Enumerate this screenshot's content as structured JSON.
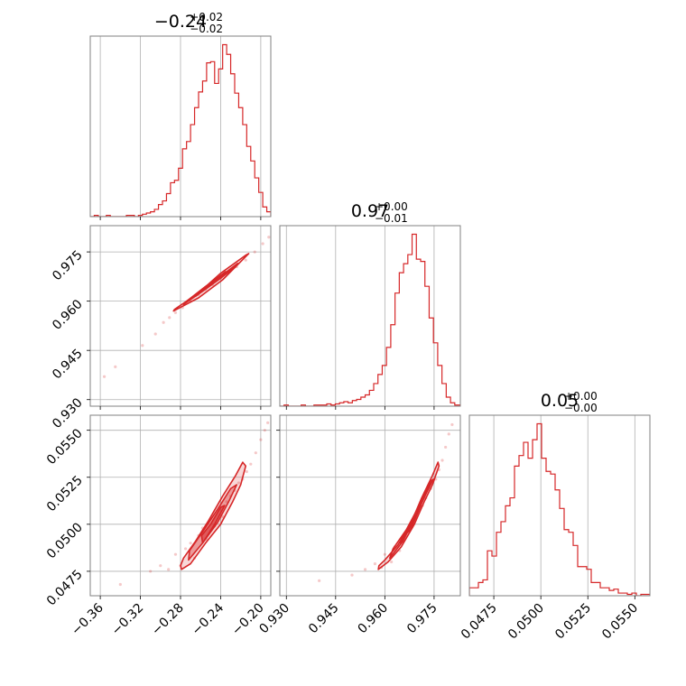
{
  "chart_data": {
    "type": "corner",
    "color": "#d62728",
    "grid": true,
    "parameters": [
      {
        "title": {
          "value": "−0.24",
          "plus": "+0.02",
          "minus": "−0.02"
        },
        "range": [
          -0.37,
          -0.19
        ],
        "ticks": [
          -0.36,
          -0.32,
          -0.28,
          -0.24,
          -0.2
        ],
        "tick_labels": [
          "−0.36",
          "−0.32",
          "−0.28",
          "−0.24",
          "−0.20"
        ],
        "hist": {
          "bins": [
            -0.37,
            -0.366,
            -0.362,
            -0.358,
            -0.354,
            -0.35,
            -0.346,
            -0.342,
            -0.338,
            -0.334,
            -0.33,
            -0.326,
            -0.322,
            -0.318,
            -0.314,
            -0.31,
            -0.306,
            -0.302,
            -0.298,
            -0.294,
            -0.29,
            -0.286,
            -0.282,
            -0.278,
            -0.274,
            -0.27,
            -0.266,
            -0.262,
            -0.258,
            -0.254,
            -0.25,
            -0.246,
            -0.242,
            -0.238,
            -0.234,
            -0.23,
            -0.226,
            -0.222,
            -0.218,
            -0.214,
            -0.21,
            -0.206,
            -0.202,
            -0.198,
            -0.194,
            -0.19
          ],
          "counts": [
            0,
            1,
            0,
            0,
            1,
            0,
            0,
            0,
            0,
            1,
            1,
            0,
            1,
            2,
            3,
            4,
            6,
            10,
            13,
            19,
            28,
            30,
            40,
            56,
            62,
            76,
            90,
            103,
            112,
            127,
            128,
            110,
            122,
            142,
            134,
            118,
            102,
            90,
            76,
            58,
            46,
            32,
            20,
            8,
            4
          ]
        }
      },
      {
        "title": {
          "value": "0.97",
          "plus": "+0.00",
          "minus": "−0.01"
        },
        "range": [
          0.928,
          0.983
        ],
        "ticks": [
          0.93,
          0.945,
          0.96,
          0.975
        ],
        "tick_labels": [
          "0.930",
          "0.945",
          "0.960",
          "0.975"
        ],
        "hist": {
          "bins": [
            0.928,
            0.9293,
            0.9306,
            0.9319,
            0.9332,
            0.9345,
            0.9358,
            0.9371,
            0.9384,
            0.9397,
            0.941,
            0.9423,
            0.9436,
            0.9449,
            0.9462,
            0.9475,
            0.9488,
            0.9501,
            0.9514,
            0.9527,
            0.954,
            0.9553,
            0.9566,
            0.9579,
            0.9592,
            0.9605,
            0.9618,
            0.9631,
            0.9644,
            0.9657,
            0.967,
            0.9683,
            0.9696,
            0.9709,
            0.9722,
            0.9735,
            0.9748,
            0.9761,
            0.9774,
            0.9787,
            0.98,
            0.9813,
            0.983
          ],
          "counts": [
            0,
            1,
            0,
            0,
            0,
            1,
            0,
            0,
            1,
            1,
            1,
            2,
            1,
            2,
            3,
            4,
            3,
            5,
            6,
            8,
            10,
            14,
            20,
            28,
            36,
            52,
            72,
            100,
            118,
            126,
            134,
            152,
            130,
            128,
            106,
            78,
            56,
            36,
            20,
            8,
            3,
            1
          ]
        }
      },
      {
        "title": {
          "value": "0.05",
          "plus": "+0.00",
          "minus": "−0.00"
        },
        "range": [
          0.0462,
          0.0558
        ],
        "ticks": [
          0.0475,
          0.05,
          0.0525,
          0.055
        ],
        "tick_labels": [
          "0.0475",
          "0.0500",
          "0.0525",
          "0.0550"
        ],
        "hist": {
          "bins": [
            0.0462,
            0.04644,
            0.04668,
            0.04692,
            0.04716,
            0.0474,
            0.04764,
            0.04788,
            0.04812,
            0.04836,
            0.0486,
            0.04884,
            0.04908,
            0.04932,
            0.04956,
            0.0498,
            0.05004,
            0.05028,
            0.05052,
            0.05076,
            0.051,
            0.05124,
            0.05148,
            0.05172,
            0.05196,
            0.0522,
            0.05244,
            0.05268,
            0.05292,
            0.05316,
            0.0534,
            0.05364,
            0.05388,
            0.05412,
            0.05436,
            0.0546,
            0.05484,
            0.05508,
            0.05532,
            0.05556,
            0.0558
          ],
          "counts": [
            6,
            6,
            10,
            12,
            34,
            30,
            48,
            56,
            68,
            74,
            98,
            106,
            116,
            104,
            118,
            130,
            104,
            94,
            92,
            80,
            66,
            50,
            48,
            38,
            22,
            22,
            20,
            10,
            10,
            6,
            6,
            4,
            5,
            2,
            2,
            1,
            2,
            0,
            1,
            1
          ]
        }
      }
    ],
    "pairs": [
      {
        "x": 0,
        "y": 1,
        "points": [
          [
            -0.356,
            0.937
          ],
          [
            -0.345,
            0.94
          ],
          [
            -0.318,
            0.9465
          ],
          [
            -0.305,
            0.95
          ],
          [
            -0.297,
            0.9535
          ],
          [
            -0.291,
            0.955
          ],
          [
            -0.285,
            0.9565
          ],
          [
            -0.278,
            0.958
          ],
          [
            -0.27,
            0.96
          ],
          [
            -0.262,
            0.962
          ],
          [
            -0.255,
            0.9635
          ],
          [
            -0.248,
            0.965
          ],
          [
            -0.24,
            0.967
          ],
          [
            -0.232,
            0.969
          ],
          [
            -0.224,
            0.9705
          ],
          [
            -0.215,
            0.9725
          ],
          [
            -0.206,
            0.975
          ],
          [
            -0.198,
            0.9775
          ],
          [
            -0.192,
            0.9795
          ]
        ],
        "contours": [
          [
            [
              -0.286,
              0.9575
            ],
            [
              -0.262,
              0.9625
            ],
            [
              -0.24,
              0.9685
            ],
            [
              -0.215,
              0.974
            ],
            [
              -0.212,
              0.9745
            ],
            [
              -0.238,
              0.9665
            ],
            [
              -0.262,
              0.961
            ],
            [
              -0.287,
              0.957
            ]
          ],
          [
            [
              -0.276,
              0.9595
            ],
            [
              -0.255,
              0.9645
            ],
            [
              -0.236,
              0.9685
            ],
            [
              -0.223,
              0.9715
            ],
            [
              -0.225,
              0.9705
            ],
            [
              -0.24,
              0.967
            ],
            [
              -0.258,
              0.963
            ],
            [
              -0.277,
              0.959
            ]
          ],
          [
            [
              -0.264,
              0.962
            ],
            [
              -0.248,
              0.966
            ],
            [
              -0.235,
              0.969
            ],
            [
              -0.236,
              0.968
            ],
            [
              -0.25,
              0.965
            ],
            [
              -0.265,
              0.9615
            ]
          ]
        ]
      },
      {
        "x": 0,
        "y": 2,
        "points": [
          [
            -0.34,
            0.0468
          ],
          [
            -0.31,
            0.0475
          ],
          [
            -0.3,
            0.0478
          ],
          [
            -0.292,
            0.0476
          ],
          [
            -0.285,
            0.0484
          ],
          [
            -0.28,
            0.0478
          ],
          [
            -0.275,
            0.0487
          ],
          [
            -0.27,
            0.049
          ],
          [
            -0.266,
            0.0482
          ],
          [
            -0.262,
            0.0494
          ],
          [
            -0.258,
            0.0498
          ],
          [
            -0.254,
            0.0492
          ],
          [
            -0.25,
            0.0503
          ],
          [
            -0.246,
            0.0499
          ],
          [
            -0.242,
            0.0508
          ],
          [
            -0.238,
            0.0504
          ],
          [
            -0.234,
            0.0512
          ],
          [
            -0.23,
            0.0515
          ],
          [
            -0.226,
            0.0518
          ],
          [
            -0.222,
            0.0522
          ],
          [
            -0.218,
            0.0524
          ],
          [
            -0.214,
            0.0528
          ],
          [
            -0.21,
            0.0532
          ],
          [
            -0.205,
            0.0538
          ],
          [
            -0.2,
            0.0545
          ],
          [
            -0.196,
            0.055
          ],
          [
            -0.193,
            0.0554
          ]
        ],
        "contours": [
          [
            [
              -0.279,
              0.0476
            ],
            [
              -0.27,
              0.0479
            ],
            [
              -0.255,
              0.049
            ],
            [
              -0.24,
              0.05
            ],
            [
              -0.228,
              0.0512
            ],
            [
              -0.22,
              0.0521
            ],
            [
              -0.215,
              0.0531
            ],
            [
              -0.218,
              0.0533
            ],
            [
              -0.225,
              0.0526
            ],
            [
              -0.238,
              0.0515
            ],
            [
              -0.252,
              0.0502
            ],
            [
              -0.265,
              0.0491
            ],
            [
              -0.277,
              0.0482
            ],
            [
              -0.28,
              0.0478
            ]
          ],
          [
            [
              -0.272,
              0.0481
            ],
            [
              -0.258,
              0.049
            ],
            [
              -0.243,
              0.0501
            ],
            [
              -0.232,
              0.0512
            ],
            [
              -0.224,
              0.0521
            ],
            [
              -0.23,
              0.0519
            ],
            [
              -0.243,
              0.0508
            ],
            [
              -0.258,
              0.0496
            ],
            [
              -0.271,
              0.0486
            ]
          ],
          [
            [
              -0.258,
              0.049
            ],
            [
              -0.246,
              0.05
            ],
            [
              -0.236,
              0.051
            ],
            [
              -0.24,
              0.0509
            ],
            [
              -0.25,
              0.05
            ],
            [
              -0.259,
              0.0494
            ]
          ]
        ]
      },
      {
        "x": 1,
        "y": 2,
        "points": [
          [
            0.94,
            0.047
          ],
          [
            0.95,
            0.0473
          ],
          [
            0.954,
            0.0476
          ],
          [
            0.957,
            0.0479
          ],
          [
            0.959,
            0.0477
          ],
          [
            0.96,
            0.0484
          ],
          [
            0.962,
            0.048
          ],
          [
            0.963,
            0.0488
          ],
          [
            0.9645,
            0.0486
          ],
          [
            0.965,
            0.0492
          ],
          [
            0.9665,
            0.0496
          ],
          [
            0.9675,
            0.0499
          ],
          [
            0.969,
            0.0503
          ],
          [
            0.97,
            0.0507
          ],
          [
            0.9715,
            0.051
          ],
          [
            0.9725,
            0.0514
          ],
          [
            0.974,
            0.0519
          ],
          [
            0.9755,
            0.0524
          ],
          [
            0.9765,
            0.0529
          ],
          [
            0.9775,
            0.0534
          ],
          [
            0.9785,
            0.0541
          ],
          [
            0.9795,
            0.0548
          ],
          [
            0.9805,
            0.0553
          ]
        ],
        "contours": [
          [
            [
              0.958,
              0.0476
            ],
            [
              0.961,
              0.048
            ],
            [
              0.965,
              0.0488
            ],
            [
              0.969,
              0.05
            ],
            [
              0.972,
              0.0512
            ],
            [
              0.9745,
              0.0521
            ],
            [
              0.9765,
              0.0531
            ],
            [
              0.9762,
              0.0533
            ],
            [
              0.9745,
              0.0526
            ],
            [
              0.9712,
              0.0514
            ],
            [
              0.9678,
              0.05
            ],
            [
              0.964,
              0.0489
            ],
            [
              0.96,
              0.0481
            ],
            [
              0.9582,
              0.0478
            ]
          ],
          [
            [
              0.9615,
              0.0482
            ],
            [
              0.9655,
              0.0491
            ],
            [
              0.969,
              0.0503
            ],
            [
              0.9725,
              0.0516
            ],
            [
              0.9748,
              0.0524
            ],
            [
              0.974,
              0.0523
            ],
            [
              0.9705,
              0.051
            ],
            [
              0.9665,
              0.0497
            ],
            [
              0.9625,
              0.0487
            ]
          ],
          [
            [
              0.9648,
              0.049
            ],
            [
              0.968,
              0.05
            ],
            [
              0.971,
              0.051
            ],
            [
              0.9705,
              0.0508
            ],
            [
              0.9678,
              0.0497
            ],
            [
              0.9652,
              0.0493
            ]
          ]
        ]
      }
    ]
  }
}
